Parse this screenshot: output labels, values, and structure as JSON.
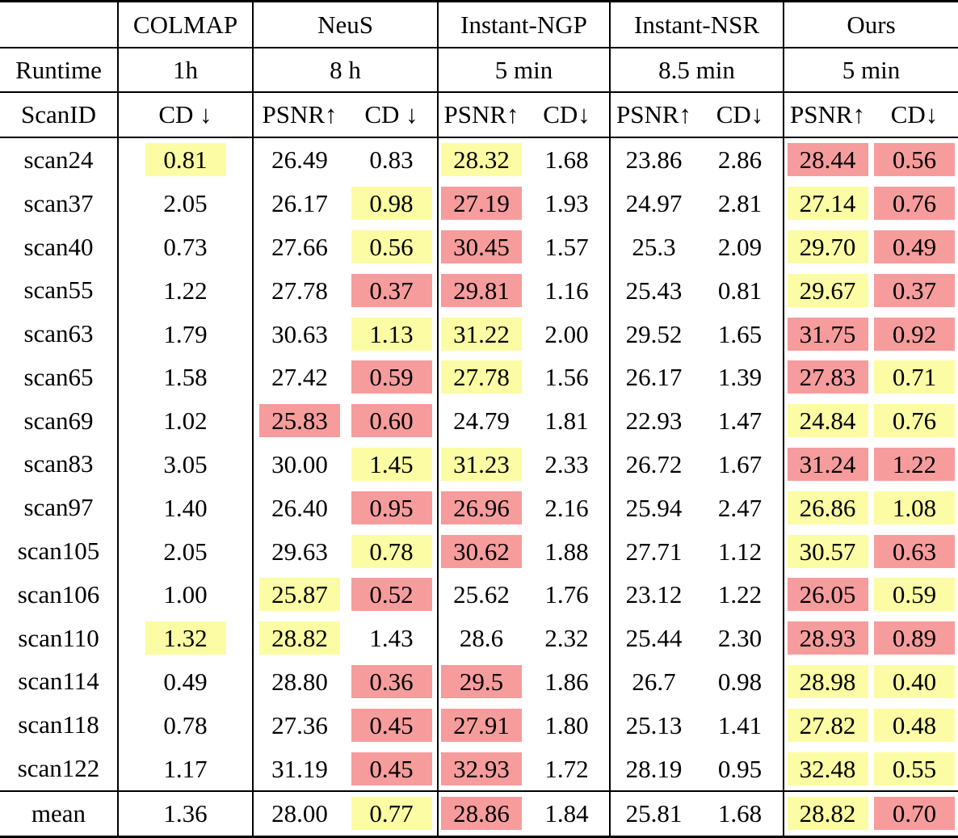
{
  "chart_data": {
    "type": "table",
    "runtime_label": "Runtime",
    "scanid_label": "ScanID",
    "mean_label": "mean",
    "highlight_colors": {
      "best": "#F69C9C",
      "second_best": "#FCFCA4"
    },
    "methods": [
      {
        "name": "COLMAP",
        "runtime": "1h",
        "cols": [
          "CD ↓"
        ]
      },
      {
        "name": "NeuS",
        "runtime": "8 h",
        "cols": [
          "PSNR↑",
          "CD ↓"
        ]
      },
      {
        "name": "Instant-NGP",
        "runtime": "5 min",
        "cols": [
          "PSNR↑",
          "CD↓"
        ]
      },
      {
        "name": "Instant-NSR",
        "runtime": "8.5 min",
        "cols": [
          "PSNR↑",
          "CD↓"
        ]
      },
      {
        "name": "Ours",
        "runtime": "5 min",
        "cols": [
          "PSNR↑",
          "CD↓"
        ]
      }
    ],
    "column_keys": [
      "colmap-cd",
      "neus-psnr",
      "neus-cd",
      "ngp-psnr",
      "ngp-cd",
      "nsr-psnr",
      "nsr-cd",
      "ours-psnr",
      "ours-cd"
    ],
    "rows": [
      {
        "id": "scan24",
        "cells": [
          {
            "v": "0.81",
            "h": "y"
          },
          {
            "v": "26.49",
            "h": ""
          },
          {
            "v": "0.83",
            "h": ""
          },
          {
            "v": "28.32",
            "h": "y"
          },
          {
            "v": "1.68",
            "h": ""
          },
          {
            "v": "23.86",
            "h": ""
          },
          {
            "v": "2.86",
            "h": ""
          },
          {
            "v": "28.44",
            "h": "r"
          },
          {
            "v": "0.56",
            "h": "r"
          }
        ]
      },
      {
        "id": "scan37",
        "cells": [
          {
            "v": "2.05",
            "h": ""
          },
          {
            "v": "26.17",
            "h": ""
          },
          {
            "v": "0.98",
            "h": "y"
          },
          {
            "v": "27.19",
            "h": "r"
          },
          {
            "v": "1.93",
            "h": ""
          },
          {
            "v": "24.97",
            "h": ""
          },
          {
            "v": "2.81",
            "h": ""
          },
          {
            "v": "27.14",
            "h": "y"
          },
          {
            "v": "0.76",
            "h": "r"
          }
        ]
      },
      {
        "id": "scan40",
        "cells": [
          {
            "v": "0.73",
            "h": ""
          },
          {
            "v": "27.66",
            "h": ""
          },
          {
            "v": "0.56",
            "h": "y"
          },
          {
            "v": "30.45",
            "h": "r"
          },
          {
            "v": "1.57",
            "h": ""
          },
          {
            "v": "25.3",
            "h": ""
          },
          {
            "v": "2.09",
            "h": ""
          },
          {
            "v": "29.70",
            "h": "y"
          },
          {
            "v": "0.49",
            "h": "r"
          }
        ]
      },
      {
        "id": "scan55",
        "cells": [
          {
            "v": "1.22",
            "h": ""
          },
          {
            "v": "27.78",
            "h": ""
          },
          {
            "v": "0.37",
            "h": "r"
          },
          {
            "v": "29.81",
            "h": "r"
          },
          {
            "v": "1.16",
            "h": ""
          },
          {
            "v": "25.43",
            "h": ""
          },
          {
            "v": "0.81",
            "h": ""
          },
          {
            "v": "29.67",
            "h": "y"
          },
          {
            "v": "0.37",
            "h": "r"
          }
        ]
      },
      {
        "id": "scan63",
        "cells": [
          {
            "v": "1.79",
            "h": ""
          },
          {
            "v": "30.63",
            "h": ""
          },
          {
            "v": "1.13",
            "h": "y"
          },
          {
            "v": "31.22",
            "h": "y"
          },
          {
            "v": "2.00",
            "h": ""
          },
          {
            "v": "29.52",
            "h": ""
          },
          {
            "v": "1.65",
            "h": ""
          },
          {
            "v": "31.75",
            "h": "r"
          },
          {
            "v": "0.92",
            "h": "r"
          }
        ]
      },
      {
        "id": "scan65",
        "cells": [
          {
            "v": "1.58",
            "h": ""
          },
          {
            "v": "27.42",
            "h": ""
          },
          {
            "v": "0.59",
            "h": "r"
          },
          {
            "v": "27.78",
            "h": "y"
          },
          {
            "v": "1.56",
            "h": ""
          },
          {
            "v": "26.17",
            "h": ""
          },
          {
            "v": "1.39",
            "h": ""
          },
          {
            "v": "27.83",
            "h": "r"
          },
          {
            "v": "0.71",
            "h": "y"
          }
        ]
      },
      {
        "id": "scan69",
        "cells": [
          {
            "v": "1.02",
            "h": ""
          },
          {
            "v": "25.83",
            "h": "r"
          },
          {
            "v": "0.60",
            "h": "r"
          },
          {
            "v": "24.79",
            "h": ""
          },
          {
            "v": "1.81",
            "h": ""
          },
          {
            "v": "22.93",
            "h": ""
          },
          {
            "v": "1.47",
            "h": ""
          },
          {
            "v": "24.84",
            "h": "y"
          },
          {
            "v": "0.76",
            "h": "y"
          }
        ]
      },
      {
        "id": "scan83",
        "cells": [
          {
            "v": "3.05",
            "h": ""
          },
          {
            "v": "30.00",
            "h": ""
          },
          {
            "v": "1.45",
            "h": "y"
          },
          {
            "v": "31.23",
            "h": "y"
          },
          {
            "v": "2.33",
            "h": ""
          },
          {
            "v": "26.72",
            "h": ""
          },
          {
            "v": "1.67",
            "h": ""
          },
          {
            "v": "31.24",
            "h": "r"
          },
          {
            "v": "1.22",
            "h": "r"
          }
        ]
      },
      {
        "id": "scan97",
        "cells": [
          {
            "v": "1.40",
            "h": ""
          },
          {
            "v": "26.40",
            "h": ""
          },
          {
            "v": "0.95",
            "h": "r"
          },
          {
            "v": "26.96",
            "h": "r"
          },
          {
            "v": "2.16",
            "h": ""
          },
          {
            "v": "25.94",
            "h": ""
          },
          {
            "v": "2.47",
            "h": ""
          },
          {
            "v": "26.86",
            "h": "y"
          },
          {
            "v": "1.08",
            "h": "y"
          }
        ]
      },
      {
        "id": "scan105",
        "cells": [
          {
            "v": "2.05",
            "h": ""
          },
          {
            "v": "29.63",
            "h": ""
          },
          {
            "v": "0.78",
            "h": "y"
          },
          {
            "v": "30.62",
            "h": "r"
          },
          {
            "v": "1.88",
            "h": ""
          },
          {
            "v": "27.71",
            "h": ""
          },
          {
            "v": "1.12",
            "h": ""
          },
          {
            "v": "30.57",
            "h": "y"
          },
          {
            "v": "0.63",
            "h": "r"
          }
        ]
      },
      {
        "id": "scan106",
        "cells": [
          {
            "v": "1.00",
            "h": ""
          },
          {
            "v": "25.87",
            "h": "y"
          },
          {
            "v": "0.52",
            "h": "r"
          },
          {
            "v": "25.62",
            "h": ""
          },
          {
            "v": "1.76",
            "h": ""
          },
          {
            "v": "23.12",
            "h": ""
          },
          {
            "v": "1.22",
            "h": ""
          },
          {
            "v": "26.05",
            "h": "r"
          },
          {
            "v": "0.59",
            "h": "y"
          }
        ]
      },
      {
        "id": "scan110",
        "cells": [
          {
            "v": "1.32",
            "h": "y"
          },
          {
            "v": "28.82",
            "h": "y"
          },
          {
            "v": "1.43",
            "h": ""
          },
          {
            "v": "28.6",
            "h": ""
          },
          {
            "v": "2.32",
            "h": ""
          },
          {
            "v": "25.44",
            "h": ""
          },
          {
            "v": "2.30",
            "h": ""
          },
          {
            "v": "28.93",
            "h": "r"
          },
          {
            "v": "0.89",
            "h": "r"
          }
        ]
      },
      {
        "id": "scan114",
        "cells": [
          {
            "v": "0.49",
            "h": ""
          },
          {
            "v": "28.80",
            "h": ""
          },
          {
            "v": "0.36",
            "h": "r"
          },
          {
            "v": "29.5",
            "h": "r"
          },
          {
            "v": "1.86",
            "h": ""
          },
          {
            "v": "26.7",
            "h": ""
          },
          {
            "v": "0.98",
            "h": ""
          },
          {
            "v": "28.98",
            "h": "y"
          },
          {
            "v": "0.40",
            "h": "y"
          }
        ]
      },
      {
        "id": "scan118",
        "cells": [
          {
            "v": "0.78",
            "h": ""
          },
          {
            "v": "27.36",
            "h": ""
          },
          {
            "v": "0.45",
            "h": "r"
          },
          {
            "v": "27.91",
            "h": "r"
          },
          {
            "v": "1.80",
            "h": ""
          },
          {
            "v": "25.13",
            "h": ""
          },
          {
            "v": "1.41",
            "h": ""
          },
          {
            "v": "27.82",
            "h": "y"
          },
          {
            "v": "0.48",
            "h": "y"
          }
        ]
      },
      {
        "id": "scan122",
        "cells": [
          {
            "v": "1.17",
            "h": ""
          },
          {
            "v": "31.19",
            "h": ""
          },
          {
            "v": "0.45",
            "h": "r"
          },
          {
            "v": "32.93",
            "h": "r"
          },
          {
            "v": "1.72",
            "h": ""
          },
          {
            "v": "28.19",
            "h": ""
          },
          {
            "v": "0.95",
            "h": ""
          },
          {
            "v": "32.48",
            "h": "y"
          },
          {
            "v": "0.55",
            "h": "y"
          }
        ]
      }
    ],
    "mean_row": {
      "id": "mean",
      "cells": [
        {
          "v": "1.36",
          "h": ""
        },
        {
          "v": "28.00",
          "h": ""
        },
        {
          "v": "0.77",
          "h": "y"
        },
        {
          "v": "28.86",
          "h": "r"
        },
        {
          "v": "1.84",
          "h": ""
        },
        {
          "v": "25.81",
          "h": ""
        },
        {
          "v": "1.68",
          "h": ""
        },
        {
          "v": "28.82",
          "h": "y"
        },
        {
          "v": "0.70",
          "h": "r"
        }
      ]
    }
  }
}
